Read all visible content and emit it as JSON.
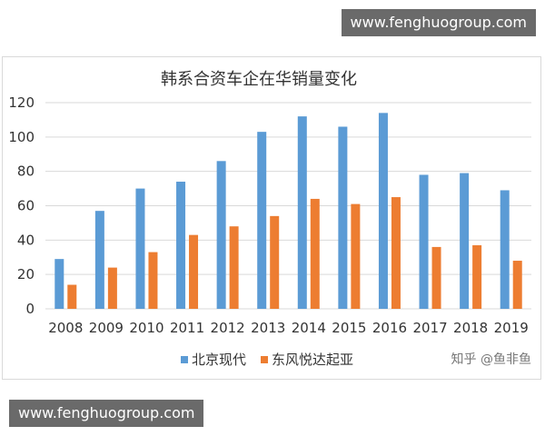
{
  "watermarks": {
    "top": "www.fenghuogroup.com",
    "bottom": "www.fenghuogroup.com"
  },
  "credit": "知乎 @鱼非鱼",
  "colors": {
    "series1": "#5b9bd5",
    "series2": "#ed7d31",
    "grid": "#d9d9d9"
  },
  "chart_data": {
    "type": "bar",
    "title": "韩系合资车企在华销量变化",
    "xlabel": "",
    "ylabel": "",
    "ylim": [
      0,
      120
    ],
    "yticks": [
      0,
      20,
      40,
      60,
      80,
      100,
      120
    ],
    "grid": true,
    "legend_position": "bottom",
    "categories": [
      "2008",
      "2009",
      "2010",
      "2011",
      "2012",
      "2013",
      "2014",
      "2015",
      "2016",
      "2017",
      "2018",
      "2019"
    ],
    "series": [
      {
        "name": "北京现代",
        "values": [
          29,
          57,
          70,
          74,
          86,
          103,
          112,
          106,
          114,
          78,
          79,
          69
        ]
      },
      {
        "name": "东风悦达起亚",
        "values": [
          14,
          24,
          33,
          43,
          48,
          54,
          64,
          61,
          65,
          36,
          37,
          28
        ]
      }
    ]
  }
}
